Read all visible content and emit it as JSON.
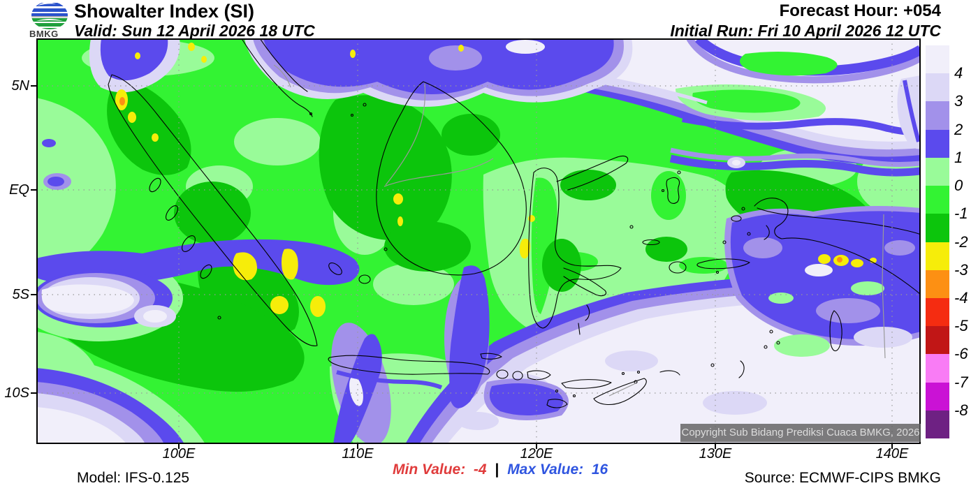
{
  "header": {
    "logo_text": "BMKG",
    "title": "Showalter Index (SI)",
    "valid_line": "Valid: Sun 12 April 2026 18 UTC",
    "forecast_hour_line": "Forecast Hour: +054",
    "initial_run_line": "Initial Run: Fri 10 April 2026 12 UTC"
  },
  "map": {
    "lat_labels": [
      "5N",
      "EQ",
      "5S",
      "10S"
    ],
    "lon_labels": [
      "100E",
      "110E",
      "120E",
      "130E",
      "140E"
    ],
    "copyright": "Copyright Sub Bidang Prediksi Cuaca BMKG, 2026"
  },
  "colorbar": {
    "tick_labels": [
      "4",
      "3",
      "2",
      "1",
      "0",
      "-1",
      "-2",
      "-3",
      "-4",
      "-5",
      "-6",
      "-7",
      "-8"
    ],
    "colors": [
      "#f1effa",
      "#dcd8f6",
      "#a291ea",
      "#5b4aed",
      "#99fb99",
      "#33f333",
      "#0cc50c",
      "#f6ed0a",
      "#fd9013",
      "#f52c11",
      "#c11616",
      "#f97cf5",
      "#ca12d5",
      "#6e2183"
    ]
  },
  "footer": {
    "model": "Model: IFS-0.125",
    "min_label": "Min Value:",
    "min_value": "-4",
    "separator": "|",
    "max_label": "Max Value:",
    "max_value": "16",
    "source": "Source: ECMWF-CIPS BMKG"
  },
  "chart_data": {
    "type": "heatmap",
    "title": "Showalter Index (SI)",
    "valid_time": "Sun 12 April 2026 18 UTC",
    "initial_run": "Fri 10 April 2026 12 UTC",
    "forecast_hour": "+054",
    "model": "IFS-0.125",
    "source": "ECMWF-CIPS BMKG",
    "min_value": -4,
    "max_value": 16,
    "legend_levels": [
      4,
      3,
      2,
      1,
      0,
      -1,
      -2,
      -3,
      -4,
      -5,
      -6,
      -7,
      -8
    ],
    "x_axis": {
      "label_type": "longitude",
      "ticks": [
        "100E",
        "110E",
        "120E",
        "130E",
        "140E"
      ]
    },
    "y_axis": {
      "label_type": "latitude",
      "ticks": [
        "5N",
        "EQ",
        "5S",
        "10S"
      ]
    },
    "legend_position": "right"
  }
}
